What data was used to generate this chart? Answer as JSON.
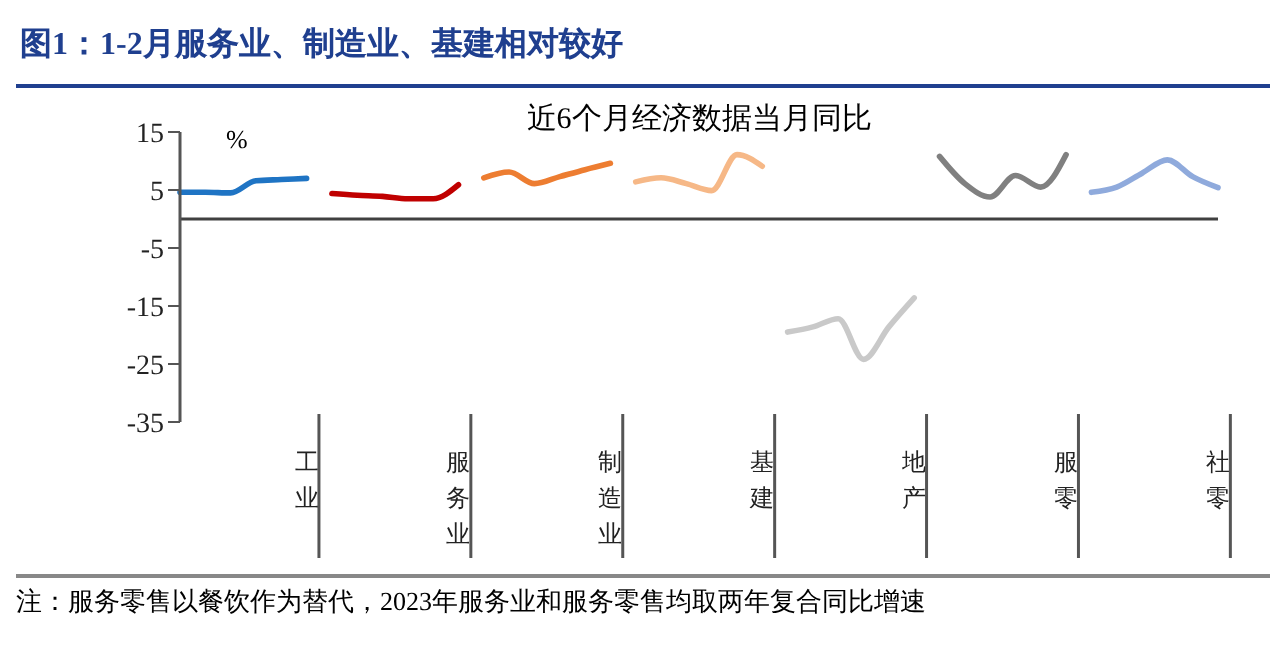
{
  "chart_data": {
    "type": "line",
    "title": "图1：1-2月服务业、制造业、基建相对较好",
    "subtitle": "近6个月经济数据当月同比",
    "ylabel": "%",
    "categories": [
      null,
      null,
      null,
      null,
      null,
      "工业",
      null,
      null,
      null,
      null,
      null,
      "服务业",
      null,
      null,
      null,
      null,
      null,
      "制造业",
      null,
      null,
      null,
      null,
      null,
      "基建",
      null,
      null,
      null,
      null,
      null,
      "地产",
      null,
      null,
      null,
      null,
      null,
      "服零",
      null,
      null,
      null,
      null,
      null,
      "社零"
    ],
    "series": [
      {
        "color": "#1f74c4",
        "values": [
          4.6,
          4.6,
          4.5,
          6.6,
          6.8,
          7.0,
          null,
          null,
          null,
          null,
          null,
          null,
          null,
          null,
          null,
          null,
          null,
          null,
          null,
          null,
          null,
          null,
          null,
          null,
          null,
          null,
          null,
          null,
          null,
          null,
          null,
          null,
          null,
          null,
          null,
          null,
          null,
          null,
          null,
          null,
          null,
          null
        ]
      },
      {
        "color": "#c00000",
        "values": [
          null,
          null,
          null,
          null,
          null,
          null,
          4.4,
          4.1,
          3.9,
          3.5,
          3.5,
          5.9,
          null,
          null,
          null,
          null,
          null,
          null,
          null,
          null,
          null,
          null,
          null,
          null,
          null,
          null,
          null,
          null,
          null,
          null,
          null,
          null,
          null,
          null,
          null,
          null,
          null,
          null,
          null,
          null,
          null,
          null
        ]
      },
      {
        "color": "#ed7d31",
        "values": [
          null,
          null,
          null,
          null,
          null,
          null,
          null,
          null,
          null,
          null,
          null,
          null,
          7.1,
          8.1,
          6.1,
          7.3,
          8.5,
          9.6,
          null,
          null,
          null,
          null,
          null,
          null,
          null,
          null,
          null,
          null,
          null,
          null,
          null,
          null,
          null,
          null,
          null,
          null,
          null,
          null,
          null,
          null,
          null,
          null
        ]
      },
      {
        "color": "#f6b887",
        "values": [
          null,
          null,
          null,
          null,
          null,
          null,
          null,
          null,
          null,
          null,
          null,
          null,
          null,
          null,
          null,
          null,
          null,
          null,
          6.4,
          7.1,
          6.1,
          4.9,
          11.1,
          9.1,
          null,
          null,
          null,
          null,
          null,
          null,
          null,
          null,
          null,
          null,
          null,
          null,
          null,
          null,
          null,
          null,
          null,
          null
        ]
      },
      {
        "color": "#c9c9c9",
        "values": [
          null,
          null,
          null,
          null,
          null,
          null,
          null,
          null,
          null,
          null,
          null,
          null,
          null,
          null,
          null,
          null,
          null,
          null,
          null,
          null,
          null,
          null,
          null,
          null,
          -19.5,
          -18.6,
          -17.2,
          -24.2,
          -18.6,
          -13.6,
          null,
          null,
          null,
          null,
          null,
          null,
          null,
          null,
          null,
          null,
          null,
          null
        ]
      },
      {
        "color": "#808080",
        "values": [
          null,
          null,
          null,
          null,
          null,
          null,
          null,
          null,
          null,
          null,
          null,
          null,
          null,
          null,
          null,
          null,
          null,
          null,
          null,
          null,
          null,
          null,
          null,
          null,
          null,
          null,
          null,
          null,
          null,
          null,
          10.8,
          6.1,
          3.8,
          7.5,
          5.5,
          11.1,
          null,
          null,
          null,
          null,
          null,
          null
        ]
      },
      {
        "color": "#8faadc",
        "values": [
          null,
          null,
          null,
          null,
          null,
          null,
          null,
          null,
          null,
          null,
          null,
          null,
          null,
          null,
          null,
          null,
          null,
          null,
          null,
          null,
          null,
          null,
          null,
          null,
          null,
          null,
          null,
          null,
          null,
          null,
          null,
          null,
          null,
          null,
          null,
          null,
          4.6,
          5.5,
          7.9,
          10.2,
          7.3,
          5.4
        ]
      }
    ],
    "ylim": [
      -35,
      15
    ],
    "yticks": [
      15,
      5,
      -5,
      -15,
      -25,
      -35
    ],
    "ref_lines": [
      {
        "axis": "y",
        "value": 0,
        "color": "#404040"
      }
    ],
    "annotations": [
      "注：服务零售以餐饮作为替代，2023年服务业和服务零售均取两年复合同比增速"
    ]
  }
}
